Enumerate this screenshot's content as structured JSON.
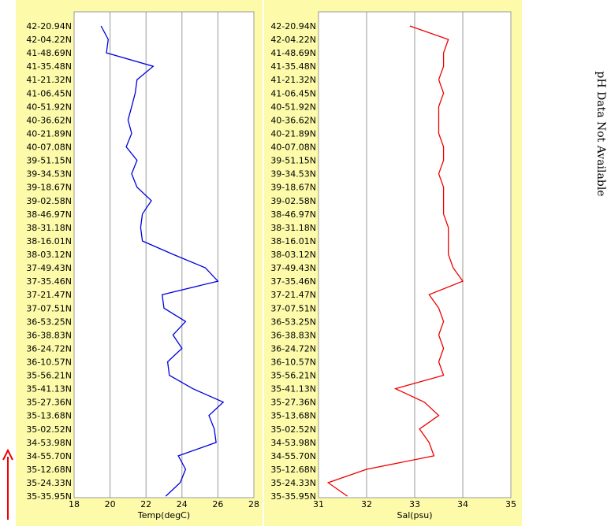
{
  "chart_data": [
    {
      "type": "line",
      "x_label": "Temp(degC)",
      "categories": [
        "42-20.94N",
        "42-04.22N",
        "41-48.69N",
        "41-35.48N",
        "41-21.32N",
        "41-06.45N",
        "40-51.92N",
        "40-36.62N",
        "40-21.89N",
        "40-07.08N",
        "39-51.15N",
        "39-34.53N",
        "39-18.67N",
        "39-02.58N",
        "38-46.97N",
        "38-31.18N",
        "38-16.01N",
        "38-03.12N",
        "37-49.43N",
        "37-35.46N",
        "37-21.47N",
        "37-07.51N",
        "36-53.25N",
        "36-38.83N",
        "36-24.72N",
        "36-10.57N",
        "35-56.21N",
        "35-41.13N",
        "35-27.36N",
        "35-13.68N",
        "35-02.52N",
        "34-53.98N",
        "34-55.70N",
        "35-12.68N",
        "35-24.33N",
        "35-35.95N"
      ],
      "values": [
        19.5,
        19.9,
        19.8,
        22.4,
        21.5,
        21.4,
        21.2,
        21.0,
        21.2,
        20.9,
        21.5,
        21.2,
        21.5,
        22.3,
        21.8,
        21.7,
        21.8,
        23.5,
        25.3,
        26.0,
        22.9,
        23.0,
        24.2,
        23.5,
        24.0,
        23.2,
        23.3,
        24.6,
        26.3,
        25.5,
        25.8,
        25.9,
        23.8,
        24.2,
        23.9,
        23.1
      ],
      "color": "#0000dd",
      "xlim": [
        18,
        28
      ],
      "xticks": [
        18,
        20,
        22,
        24,
        26,
        28
      ],
      "grid": true
    },
    {
      "type": "line",
      "x_label": "Sal(psu)",
      "categories": [
        "42-20.94N",
        "42-04.22N",
        "41-48.69N",
        "41-35.48N",
        "41-21.32N",
        "41-06.45N",
        "40-51.92N",
        "40-36.62N",
        "40-21.89N",
        "40-07.08N",
        "39-51.15N",
        "39-34.53N",
        "39-18.67N",
        "39-02.58N",
        "38-46.97N",
        "38-31.18N",
        "38-16.01N",
        "38-03.12N",
        "37-49.43N",
        "37-35.46N",
        "37-21.47N",
        "37-07.51N",
        "36-53.25N",
        "36-38.83N",
        "36-24.72N",
        "36-10.57N",
        "35-56.21N",
        "35-41.13N",
        "35-27.36N",
        "35-13.68N",
        "35-02.52N",
        "34-53.98N",
        "34-55.70N",
        "35-12.68N",
        "35-24.33N",
        "35-35.95N"
      ],
      "values": [
        32.9,
        33.7,
        33.6,
        33.6,
        33.5,
        33.6,
        33.5,
        33.5,
        33.5,
        33.6,
        33.6,
        33.5,
        33.6,
        33.6,
        33.6,
        33.7,
        33.7,
        33.7,
        33.8,
        34.0,
        33.3,
        33.5,
        33.6,
        33.5,
        33.6,
        33.5,
        33.6,
        32.6,
        33.2,
        33.5,
        33.1,
        33.3,
        33.4,
        32.0,
        31.2,
        31.6
      ],
      "color": "#ee0000",
      "xlim": [
        31,
        35
      ],
      "xticks": [
        31,
        32,
        33,
        34,
        35
      ],
      "grid": true
    }
  ],
  "ph_note": "pH Data Not Available"
}
